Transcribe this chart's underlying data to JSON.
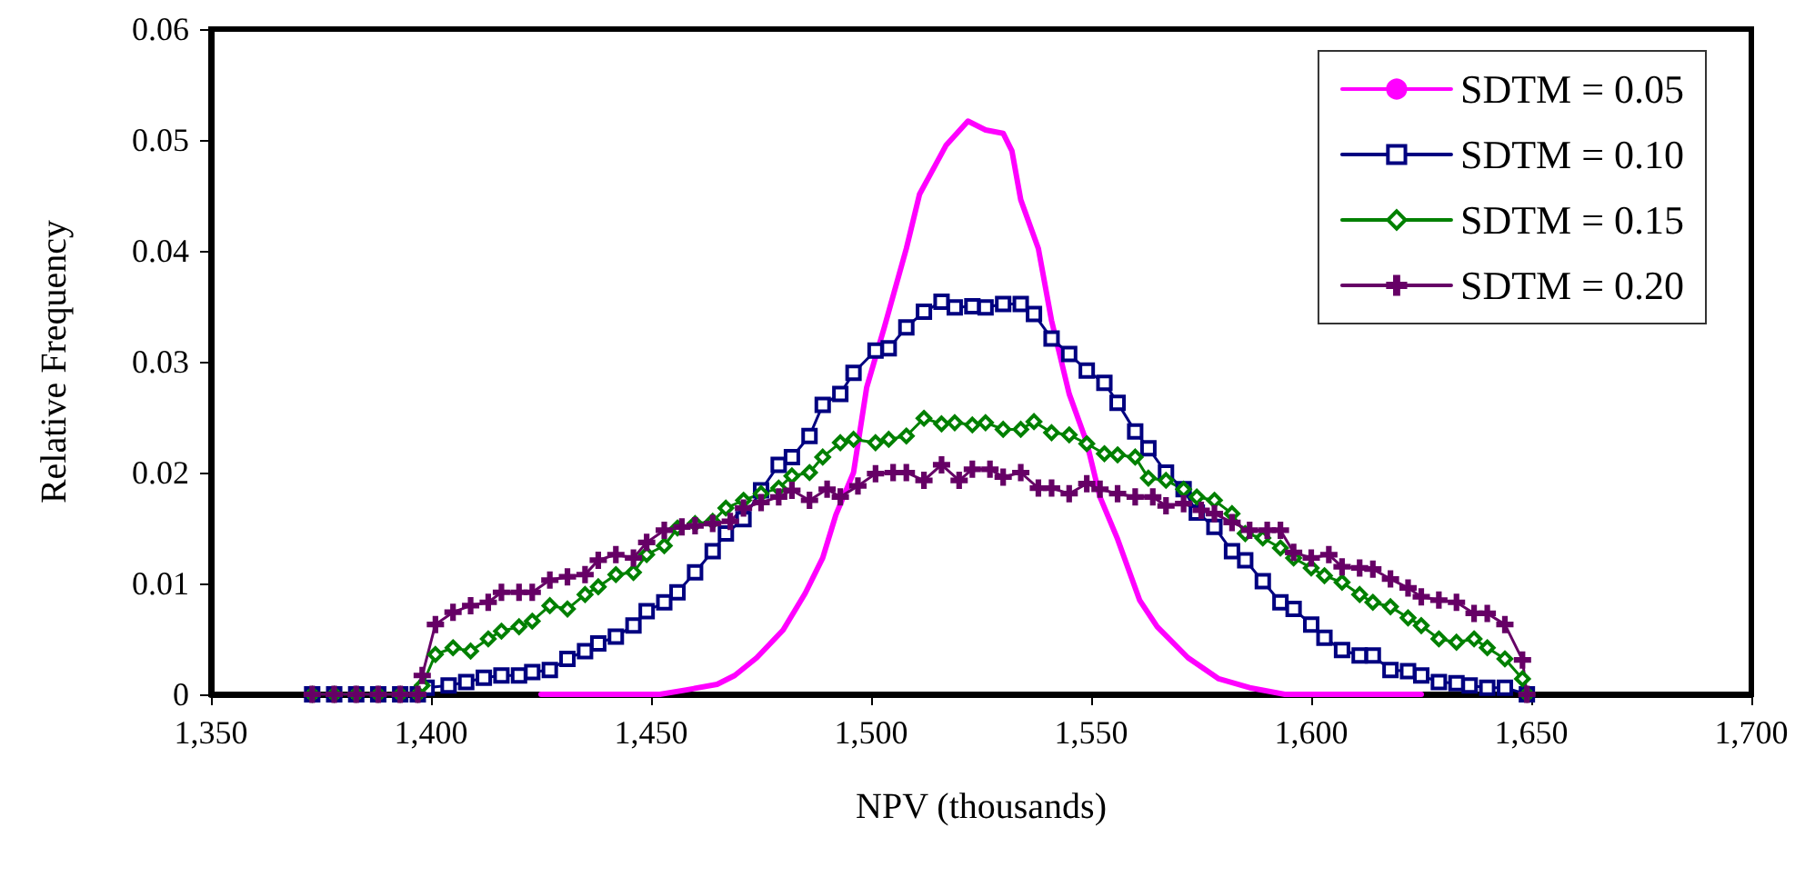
{
  "chart_data": {
    "type": "line",
    "xlabel": "NPV (thousands)",
    "ylabel": "Relative Frequency",
    "xlim": [
      1350,
      1700
    ],
    "xticks": [
      {
        "value": 1350,
        "label": "1,350"
      },
      {
        "value": 1400,
        "label": "1,400"
      },
      {
        "value": 1450,
        "label": "1,450"
      },
      {
        "value": 1500,
        "label": "1,500"
      },
      {
        "value": 1550,
        "label": "1,550"
      },
      {
        "value": 1600,
        "label": "1,600"
      },
      {
        "value": 1650,
        "label": "1,650"
      },
      {
        "value": 1700,
        "label": "1,700"
      }
    ],
    "ylim": [
      0,
      0.06
    ],
    "yticks": [
      0,
      0.01,
      0.02,
      0.03,
      0.04,
      0.05,
      0.06
    ],
    "grid": false,
    "legend": "top right",
    "line_style": "solid",
    "series": [
      {
        "name": "SDTM = 0.05",
        "color": "#ff00ff",
        "marker": "none",
        "x": [
          1425,
          1452,
          1458,
          1465,
          1469,
          1474,
          1480,
          1485,
          1489,
          1492,
          1496,
          1499,
          1503,
          1508,
          1511,
          1517,
          1522,
          1526,
          1530,
          1532,
          1534,
          1538,
          1541,
          1545,
          1549,
          1552,
          1556,
          1561,
          1565,
          1572,
          1579,
          1586,
          1594,
          1625
        ],
        "values": [
          0,
          0,
          0.0004,
          0.0009,
          0.0017,
          0.0033,
          0.0058,
          0.0091,
          0.0123,
          0.0162,
          0.02,
          0.0277,
          0.0331,
          0.0402,
          0.0451,
          0.0495,
          0.0517,
          0.0509,
          0.0506,
          0.049,
          0.0446,
          0.0402,
          0.0337,
          0.0271,
          0.0227,
          0.0178,
          0.014,
          0.0085,
          0.0061,
          0.0033,
          0.0014,
          0.0006,
          0,
          0
        ]
      },
      {
        "name": "SDTM = 0.10",
        "color": "#000080",
        "marker": "square",
        "x": [
          1373,
          1378,
          1383,
          1388,
          1393,
          1397,
          1399,
          1404,
          1408,
          1412,
          1416,
          1420,
          1423,
          1427,
          1431,
          1435,
          1438,
          1442,
          1446,
          1449,
          1453,
          1456,
          1460,
          1464,
          1467,
          1471,
          1475,
          1479,
          1482,
          1486,
          1489,
          1493,
          1496,
          1501,
          1504,
          1508,
          1512,
          1516,
          1519,
          1523,
          1526,
          1530,
          1534,
          1537,
          1541,
          1545,
          1549,
          1553,
          1556,
          1560,
          1563,
          1567,
          1571,
          1574,
          1578,
          1582,
          1585,
          1589,
          1593,
          1596,
          1600,
          1603,
          1607,
          1611,
          1614,
          1618,
          1622,
          1625,
          1629,
          1633,
          1636,
          1640,
          1644,
          1649
        ],
        "values": [
          0,
          0,
          0,
          0,
          0,
          0,
          0.0006,
          0.0008,
          0.0011,
          0.0015,
          0.0017,
          0.0017,
          0.002,
          0.0022,
          0.0032,
          0.0039,
          0.0046,
          0.0052,
          0.0062,
          0.0075,
          0.0083,
          0.0092,
          0.011,
          0.0129,
          0.0145,
          0.0158,
          0.0184,
          0.0207,
          0.0214,
          0.0233,
          0.0261,
          0.0271,
          0.029,
          0.031,
          0.0312,
          0.0331,
          0.0345,
          0.0354,
          0.0349,
          0.035,
          0.0349,
          0.0352,
          0.0352,
          0.0343,
          0.0321,
          0.0307,
          0.0292,
          0.0281,
          0.0263,
          0.0237,
          0.0222,
          0.02,
          0.0185,
          0.0164,
          0.0151,
          0.0129,
          0.0121,
          0.0102,
          0.0083,
          0.0077,
          0.0063,
          0.0051,
          0.004,
          0.0035,
          0.0035,
          0.0022,
          0.0021,
          0.0017,
          0.0011,
          0.001,
          0.0008,
          0.0006,
          0.0006,
          0
        ]
      },
      {
        "name": "SDTM = 0.15",
        "color": "#008000",
        "marker": "diamond",
        "x": [
          1373,
          1378,
          1383,
          1388,
          1393,
          1397,
          1398,
          1401,
          1405,
          1409,
          1413,
          1416,
          1420,
          1423,
          1427,
          1431,
          1435,
          1438,
          1442,
          1446,
          1449,
          1453,
          1456,
          1460,
          1464,
          1467,
          1471,
          1475,
          1479,
          1482,
          1486,
          1489,
          1493,
          1496,
          1501,
          1504,
          1508,
          1512,
          1516,
          1519,
          1523,
          1526,
          1530,
          1534,
          1537,
          1541,
          1545,
          1549,
          1553,
          1556,
          1560,
          1563,
          1567,
          1571,
          1574,
          1578,
          1582,
          1585,
          1589,
          1593,
          1596,
          1600,
          1603,
          1607,
          1611,
          1614,
          1618,
          1622,
          1625,
          1629,
          1633,
          1637,
          1640,
          1644,
          1648,
          1649
        ],
        "values": [
          0,
          0,
          0,
          0,
          0,
          0,
          0.0008,
          0.0036,
          0.0042,
          0.0039,
          0.005,
          0.0057,
          0.0061,
          0.0066,
          0.008,
          0.0077,
          0.009,
          0.0097,
          0.0108,
          0.011,
          0.0126,
          0.0134,
          0.015,
          0.0154,
          0.0156,
          0.0168,
          0.0175,
          0.0181,
          0.0186,
          0.0197,
          0.02,
          0.0214,
          0.0227,
          0.023,
          0.0227,
          0.023,
          0.0233,
          0.0249,
          0.0244,
          0.0245,
          0.0243,
          0.0245,
          0.0239,
          0.0239,
          0.0246,
          0.0236,
          0.0234,
          0.0226,
          0.0217,
          0.0216,
          0.0214,
          0.0195,
          0.0193,
          0.0185,
          0.0178,
          0.0175,
          0.0163,
          0.0145,
          0.0141,
          0.0132,
          0.0123,
          0.0114,
          0.0107,
          0.0101,
          0.009,
          0.0083,
          0.0079,
          0.0069,
          0.0062,
          0.005,
          0.0047,
          0.005,
          0.0042,
          0.0032,
          0.0014,
          0
        ]
      },
      {
        "name": "SDTM = 0.20",
        "color": "#660066",
        "marker": "cross",
        "x": [
          1373,
          1378,
          1383,
          1388,
          1393,
          1397,
          1398,
          1401,
          1405,
          1409,
          1413,
          1416,
          1420,
          1423,
          1427,
          1431,
          1435,
          1438,
          1442,
          1446,
          1449,
          1453,
          1457,
          1460,
          1464,
          1468,
          1471,
          1475,
          1479,
          1482,
          1486,
          1490,
          1493,
          1497,
          1501,
          1505,
          1508,
          1512,
          1516,
          1520,
          1523,
          1527,
          1530,
          1534,
          1538,
          1541,
          1545,
          1549,
          1552,
          1556,
          1560,
          1564,
          1567,
          1571,
          1575,
          1578,
          1582,
          1586,
          1590,
          1593,
          1596,
          1600,
          1604,
          1607,
          1611,
          1614,
          1618,
          1622,
          1625,
          1629,
          1633,
          1637,
          1640,
          1644,
          1648,
          1649
        ],
        "values": [
          0,
          0,
          0,
          0,
          0,
          0,
          0.0017,
          0.0063,
          0.0074,
          0.008,
          0.0083,
          0.0092,
          0.0092,
          0.0092,
          0.0103,
          0.0106,
          0.0108,
          0.0121,
          0.0126,
          0.0123,
          0.0137,
          0.0148,
          0.0151,
          0.0152,
          0.0154,
          0.0156,
          0.0168,
          0.0173,
          0.0178,
          0.0184,
          0.0175,
          0.0185,
          0.0178,
          0.0188,
          0.0199,
          0.02,
          0.02,
          0.0193,
          0.0207,
          0.0193,
          0.0203,
          0.0203,
          0.0196,
          0.02,
          0.0186,
          0.0186,
          0.0181,
          0.019,
          0.0185,
          0.0181,
          0.0178,
          0.0178,
          0.017,
          0.0172,
          0.0166,
          0.0163,
          0.0155,
          0.0148,
          0.0148,
          0.0148,
          0.0128,
          0.0123,
          0.0126,
          0.0115,
          0.0114,
          0.0113,
          0.0104,
          0.0096,
          0.0088,
          0.0085,
          0.0083,
          0.0073,
          0.0073,
          0.0063,
          0.0031,
          0
        ]
      }
    ]
  }
}
